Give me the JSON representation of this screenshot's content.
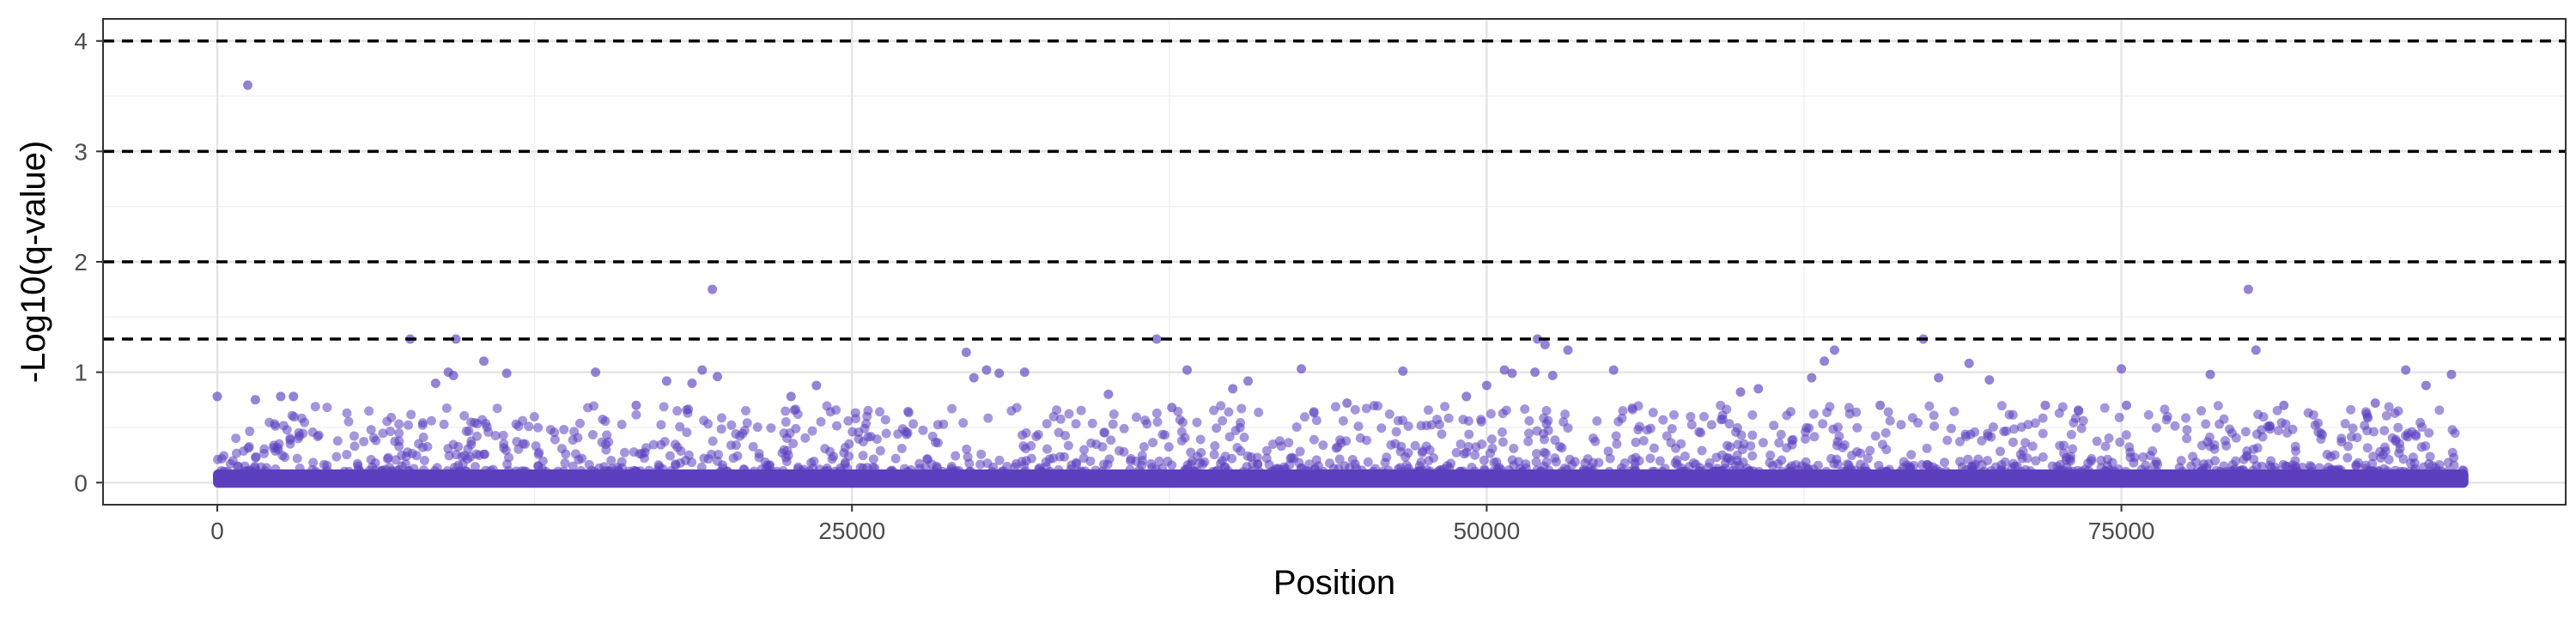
{
  "chart_data": {
    "type": "scatter",
    "title": "",
    "xlabel": "Position",
    "ylabel": "-Log10(q-value)",
    "xlim": [
      -4500,
      92500
    ],
    "ylim": [
      -0.2,
      4.2
    ],
    "x_ticks": [
      0,
      25000,
      50000,
      75000
    ],
    "x_tick_labels": [
      "0",
      "25000",
      "50000",
      "75000"
    ],
    "y_ticks": [
      0,
      1,
      2,
      3,
      4
    ],
    "y_tick_labels": [
      "0",
      "1",
      "2",
      "3",
      "4"
    ],
    "grid": true,
    "legend": "none",
    "point_color": "#5b3fbf",
    "reference_lines": {
      "style": "dashed",
      "color": "#000000",
      "y": [
        1.3,
        2,
        3,
        4
      ]
    },
    "position_range": [
      0,
      88500
    ],
    "baseline_band": {
      "description": "dense band of near-zero values across all positions",
      "y_range": [
        0,
        0.35
      ]
    },
    "series": [
      {
        "points": [
          [
            1200,
            3.6
          ],
          [
            19500,
            1.75
          ],
          [
            80000,
            1.75
          ],
          [
            7600,
            1.3
          ],
          [
            9400,
            1.3
          ],
          [
            37000,
            1.3
          ],
          [
            52000,
            1.3
          ],
          [
            67200,
            1.3
          ],
          [
            0,
            0.78
          ],
          [
            1500,
            0.75
          ],
          [
            2500,
            0.78
          ],
          [
            3000,
            0.78
          ],
          [
            8600,
            0.9
          ],
          [
            9100,
            1.0
          ],
          [
            9300,
            0.97
          ],
          [
            10500,
            1.1
          ],
          [
            11400,
            0.99
          ],
          [
            14900,
            1.0
          ],
          [
            16500,
            0.7
          ],
          [
            17700,
            0.92
          ],
          [
            18700,
            0.9
          ],
          [
            19100,
            1.02
          ],
          [
            19700,
            0.96
          ],
          [
            22600,
            0.78
          ],
          [
            23600,
            0.88
          ],
          [
            29500,
            1.18
          ],
          [
            29800,
            0.95
          ],
          [
            30300,
            1.02
          ],
          [
            30800,
            0.99
          ],
          [
            31800,
            1.0
          ],
          [
            35100,
            0.8
          ],
          [
            37600,
            0.68
          ],
          [
            38200,
            1.02
          ],
          [
            40000,
            0.85
          ],
          [
            40600,
            0.92
          ],
          [
            42700,
            1.03
          ],
          [
            44500,
            0.72
          ],
          [
            46700,
            1.01
          ],
          [
            49200,
            0.78
          ],
          [
            50000,
            0.88
          ],
          [
            50700,
            1.02
          ],
          [
            51000,
            0.99
          ],
          [
            51900,
            1.0
          ],
          [
            52300,
            1.25
          ],
          [
            52600,
            0.97
          ],
          [
            53200,
            1.2
          ],
          [
            55000,
            1.02
          ],
          [
            60000,
            0.82
          ],
          [
            60700,
            0.85
          ],
          [
            62800,
            0.95
          ],
          [
            63300,
            1.1
          ],
          [
            63700,
            1.2
          ],
          [
            65500,
            0.7
          ],
          [
            67800,
            0.95
          ],
          [
            69000,
            1.08
          ],
          [
            69800,
            0.93
          ],
          [
            72000,
            0.7
          ],
          [
            75000,
            1.03
          ],
          [
            75200,
            0.7
          ],
          [
            78500,
            0.98
          ],
          [
            80300,
            1.2
          ],
          [
            81400,
            0.7
          ],
          [
            85000,
            0.72
          ],
          [
            86200,
            1.02
          ],
          [
            87000,
            0.88
          ],
          [
            88000,
            0.98
          ]
        ]
      }
    ]
  }
}
